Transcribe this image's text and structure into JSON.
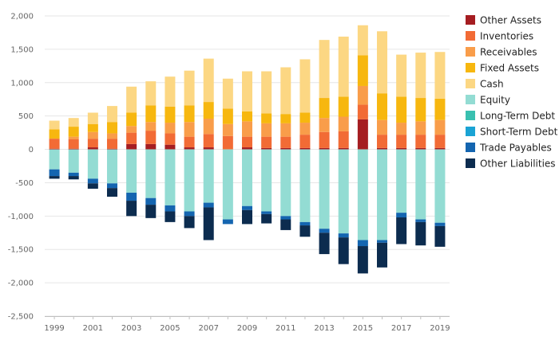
{
  "chart_data": {
    "type": "bar",
    "stacked": true,
    "title": "",
    "xlabel": "",
    "ylabel": "",
    "ylim": [
      -2500,
      2000
    ],
    "yticks": [
      -2500,
      -2000,
      -1500,
      -1000,
      -500,
      0,
      500,
      1000,
      1500,
      2000
    ],
    "ytick_labels": [
      "-2,500",
      "-2,000",
      "-1,500",
      "-1,000",
      "-500",
      "0",
      "500",
      "1,000",
      "1,500",
      "2,000"
    ],
    "categories": [
      "1999",
      "2000",
      "2001",
      "2002",
      "2003",
      "2004",
      "2005",
      "2006",
      "2007",
      "2008",
      "2009",
      "2010",
      "2011",
      "2012",
      "2013",
      "2014",
      "2015",
      "2016",
      "2017",
      "2018",
      "2019"
    ],
    "xtick_labels": [
      "1999",
      "2001",
      "2003",
      "2005",
      "2007",
      "2009",
      "2011",
      "2013",
      "2015",
      "2017",
      "2019"
    ],
    "grid": {
      "horizontal": true,
      "vertical": false
    },
    "legend_position": "right",
    "series": [
      {
        "name": "Other Assets",
        "color": "#a51d21",
        "values": [
          10,
          10,
          30,
          10,
          80,
          80,
          70,
          30,
          30,
          0,
          30,
          20,
          20,
          20,
          20,
          20,
          450,
          20,
          20,
          20,
          20
        ]
      },
      {
        "name": "Inventories",
        "color": "#f26b35",
        "values": [
          150,
          140,
          130,
          150,
          170,
          200,
          170,
          160,
          200,
          200,
          160,
          170,
          170,
          200,
          240,
          250,
          220,
          200,
          200,
          200,
          200
        ]
      },
      {
        "name": "Receivables",
        "color": "#f99d4a",
        "values": [
          0,
          40,
          100,
          80,
          100,
          130,
          160,
          220,
          230,
          180,
          230,
          200,
          200,
          180,
          210,
          220,
          280,
          220,
          180,
          200,
          220
        ]
      },
      {
        "name": "Fixed Assets",
        "color": "#f7b70f",
        "values": [
          140,
          150,
          120,
          170,
          200,
          250,
          240,
          250,
          250,
          230,
          150,
          150,
          140,
          150,
          300,
          300,
          460,
          400,
          390,
          350,
          320
        ]
      },
      {
        "name": "Cash",
        "color": "#fcd783",
        "values": [
          130,
          130,
          170,
          240,
          390,
          360,
          450,
          520,
          650,
          450,
          600,
          630,
          700,
          800,
          870,
          900,
          450,
          930,
          630,
          680,
          700
        ]
      },
      {
        "name": "Equity",
        "color": "#93dcd3",
        "values": [
          -300,
          -350,
          -440,
          -510,
          -650,
          -730,
          -840,
          -930,
          -800,
          -1050,
          -850,
          -930,
          -1000,
          -1090,
          -1190,
          -1260,
          -1360,
          -1360,
          -950,
          -1050,
          -1100
        ]
      },
      {
        "name": "Long-Term Debt",
        "color": "#39c0b0",
        "values": [
          0,
          0,
          0,
          0,
          0,
          0,
          0,
          0,
          0,
          0,
          0,
          0,
          0,
          0,
          0,
          0,
          0,
          0,
          0,
          0,
          0
        ]
      },
      {
        "name": "Short-Term Debt",
        "color": "#1aa3d4",
        "values": [
          0,
          0,
          0,
          0,
          0,
          0,
          0,
          0,
          0,
          0,
          0,
          0,
          0,
          0,
          0,
          0,
          0,
          0,
          0,
          0,
          0
        ]
      },
      {
        "name": "Trade Payables",
        "color": "#1465b0",
        "values": [
          -100,
          -50,
          -70,
          -70,
          -120,
          -100,
          -90,
          -70,
          -70,
          -70,
          -60,
          -40,
          -50,
          -50,
          -60,
          -60,
          -90,
          -40,
          -70,
          -40,
          -50
        ]
      },
      {
        "name": "Other Liabilities",
        "color": "#0c2c4f",
        "values": [
          -40,
          -50,
          -80,
          -130,
          -230,
          -200,
          -160,
          -180,
          -490,
          0,
          -210,
          -140,
          -160,
          -170,
          -320,
          -400,
          -410,
          -370,
          -400,
          -350,
          -310
        ]
      }
    ]
  }
}
